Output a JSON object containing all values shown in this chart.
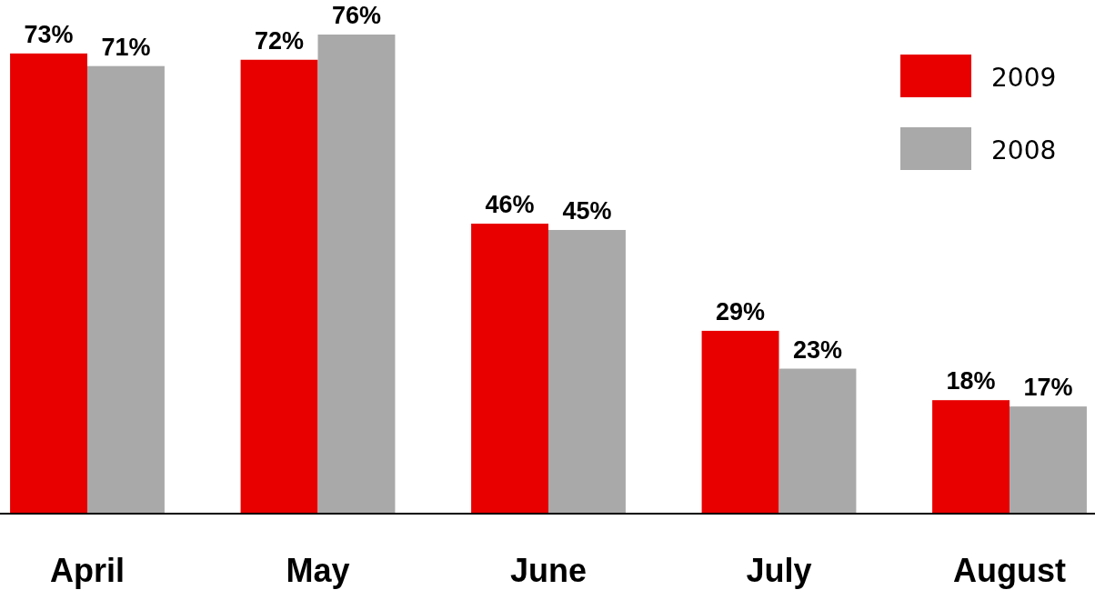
{
  "chart_data": {
    "type": "bar",
    "categories": [
      "April",
      "May",
      "June",
      "July",
      "August"
    ],
    "series": [
      {
        "name": "2009",
        "color": "#e80000",
        "values": [
          73,
          72,
          46,
          29,
          18
        ],
        "value_labels": [
          "73%",
          "72%",
          "46%",
          "29%",
          "18%"
        ]
      },
      {
        "name": "2008",
        "color": "#a9a9a9",
        "values": [
          71,
          76,
          45,
          23,
          17
        ],
        "value_labels": [
          "71%",
          "76%",
          "45%",
          "23%",
          "17%"
        ]
      }
    ],
    "legend": "top right"
  }
}
